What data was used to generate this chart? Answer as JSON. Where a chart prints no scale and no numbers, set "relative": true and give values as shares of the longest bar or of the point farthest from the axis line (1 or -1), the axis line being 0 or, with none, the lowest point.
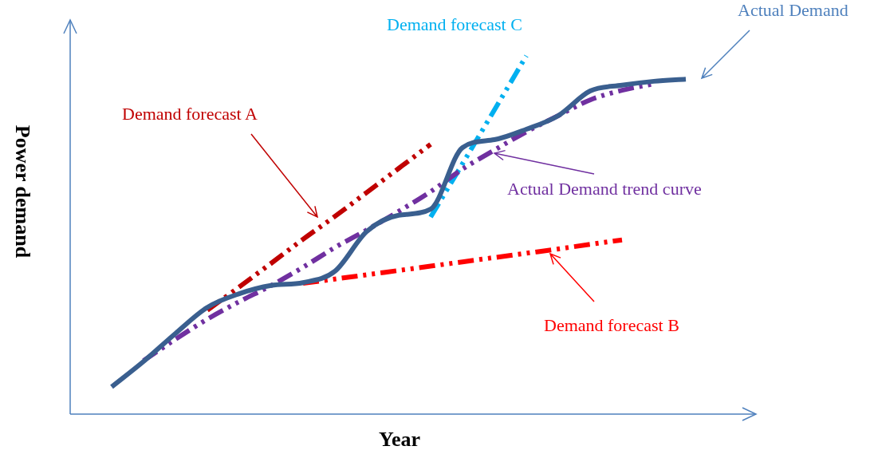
{
  "chart_data": {
    "type": "line",
    "relative": true,
    "xlabel": "Year",
    "ylabel": "Power demand",
    "legend": false,
    "marker": "none",
    "tick_labels": false,
    "categories": [
      null,
      null,
      null,
      null,
      null,
      null,
      null,
      null,
      null,
      null,
      null,
      null,
      null,
      null,
      null,
      null,
      null,
      null,
      null,
      null,
      null,
      null
    ],
    "series": [
      {
        "color": "#3a5f8f",
        "line_style": "solid",
        "values": [
          null,
          0.076,
          0.147,
          0.225,
          0.298,
          0.336,
          0.359,
          0.367,
          0.399,
          0.51,
          0.555,
          0.572,
          0.744,
          0.766,
          0.795,
          0.833,
          0.902,
          0.918,
          0.929,
          0.935,
          null,
          null
        ]
      },
      {
        "color": "#7030a0",
        "line_style": "dashed",
        "values": [
          null,
          null,
          0.149,
          0.209,
          0.265,
          0.314,
          0.359,
          0.41,
          0.465,
          0.514,
          0.566,
          0.621,
          0.684,
          0.737,
          0.788,
          0.833,
          0.877,
          0.904,
          0.922,
          null,
          null,
          null
        ]
      },
      {
        "color": "#c00000",
        "line_style": "dashed",
        "values": [
          null,
          null,
          null,
          null,
          0.29,
          0.355,
          0.421,
          0.488,
          0.552,
          0.619,
          0.686,
          0.753,
          null,
          null,
          null,
          null,
          null,
          null,
          null,
          null,
          null,
          null
        ]
      },
      {
        "color": "#ff0000",
        "line_style": "dashed",
        "values": [
          null,
          null,
          null,
          null,
          null,
          null,
          null,
          0.365,
          0.377,
          0.389,
          0.401,
          0.413,
          0.425,
          0.437,
          0.449,
          0.461,
          0.474,
          0.486,
          null,
          null,
          null,
          null
        ]
      },
      {
        "color": "#00b0f0",
        "line_style": "dashed",
        "values": [
          null,
          null,
          null,
          null,
          null,
          null,
          null,
          null,
          null,
          null,
          null,
          0.55,
          0.699,
          0.849,
          1.0,
          null,
          null,
          null,
          null,
          null,
          null,
          null
        ]
      }
    ],
    "annotations": [
      "Demand forecast C",
      "Actual Demand",
      "Demand forecast A",
      "Actual Demand trend curve",
      "Demand forecast B"
    ]
  }
}
